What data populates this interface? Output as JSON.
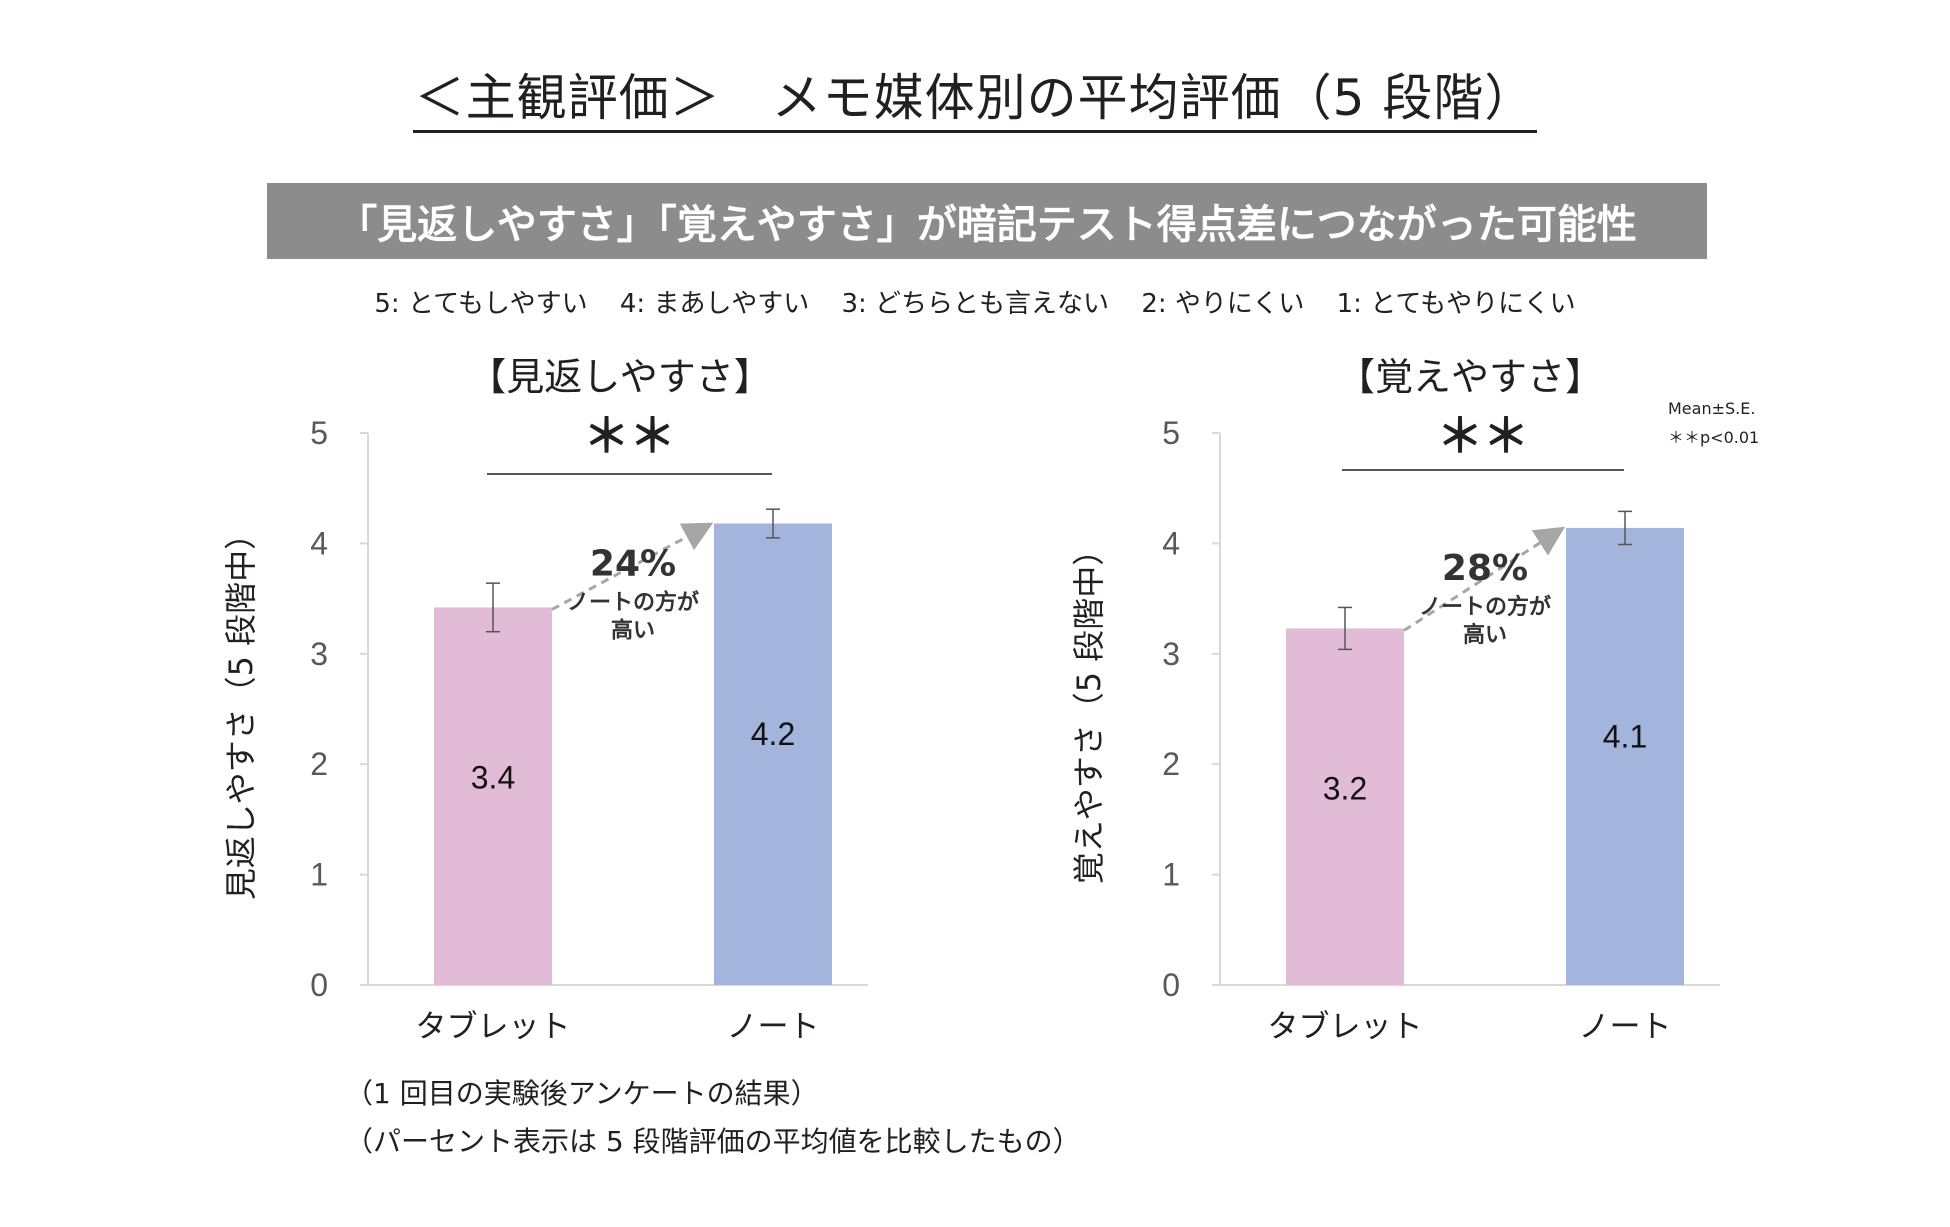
{
  "header": {
    "title": "＜主観評価＞　メモ媒体別の平均評価（5 段階）",
    "banner": "「見返しやすさ」「覚えやすさ」が暗記テスト得点差につながった可能性"
  },
  "scale": [
    "5: とてもしやすい",
    "4: まあしやすい",
    "3: どちらとも言えない",
    "2: やりにくい",
    "1: とてもやりにくい"
  ],
  "legend": {
    "mean_se": "Mean±S.E.",
    "significance": "＊＊p<0.01"
  },
  "notes": [
    "（1 回目の実験後アンケートの結果）",
    "（パーセント表示は 5 段階評価の平均値を比較したもの）"
  ],
  "colors": {
    "tablet": "#e2bcd6",
    "note": "#a3b5dc",
    "axis": "#d9d9d9",
    "arrow": "#a6a6a6",
    "banner": "#8c8c8c"
  },
  "chart_data": [
    {
      "type": "bar",
      "title": "【見返しやすさ】",
      "ylabel": "見返しやすさ（5 段階中）",
      "ylim": [
        0,
        5
      ],
      "yticks": [
        "0",
        "1",
        "2",
        "3",
        "4",
        "5"
      ],
      "categories": [
        "タブレット",
        "ノート"
      ],
      "values": [
        3.42,
        4.18
      ],
      "errors": [
        0.22,
        0.13
      ],
      "value_labels": [
        "3.4",
        "4.2"
      ],
      "significance": "＊＊",
      "annotation": {
        "percent": "24%",
        "line1": "ノートの方が",
        "line2": "高い"
      }
    },
    {
      "type": "bar",
      "title": "【覚えやすさ】",
      "ylabel": "覚えやすさ（5 段階中）",
      "ylim": [
        0,
        5
      ],
      "yticks": [
        "0",
        "1",
        "2",
        "3",
        "4",
        "5"
      ],
      "categories": [
        "タブレット",
        "ノート"
      ],
      "values": [
        3.23,
        4.14
      ],
      "errors": [
        0.19,
        0.15
      ],
      "value_labels": [
        "3.2",
        "4.1"
      ],
      "significance": "＊＊",
      "annotation": {
        "percent": "28%",
        "line1": "ノートの方が",
        "line2": "高い"
      }
    }
  ]
}
